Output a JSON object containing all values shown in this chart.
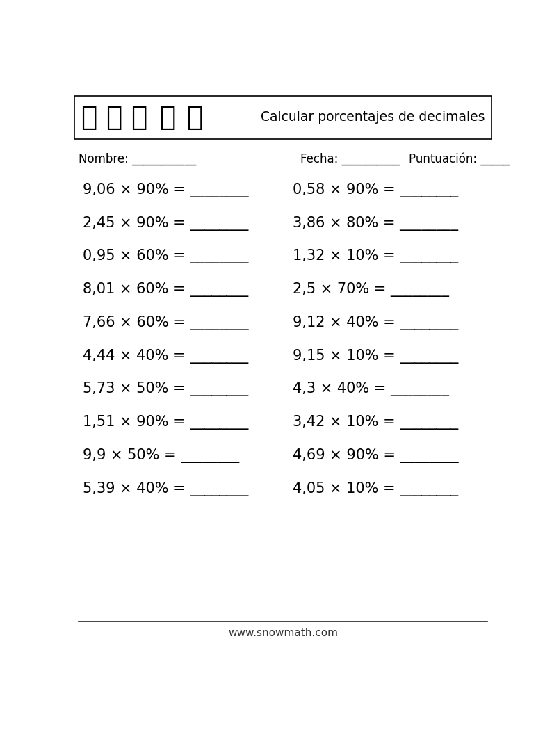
{
  "title": "Calcular porcentajes de decimales",
  "header_label_nombre": "Nombre: ",
  "header_line_nombre": "___________",
  "header_label_fecha": "Fecha: ",
  "header_line_fecha": "__________",
  "header_label_puntuacion": "Puntuación: ",
  "header_line_puntuacion": "_____",
  "footer_text": "www.snowmath.com",
  "problems_left": [
    "9,06 × 90% = ________",
    "2,45 × 90% = ________",
    "0,95 × 60% = ________",
    "8,01 × 60% = ________",
    "7,66 × 60% = ________",
    "4,44 × 40% = ________",
    "5,73 × 50% = ________",
    "1,51 × 90% = ________",
    "9,9 × 50% = ________",
    "5,39 × 40% = ________"
  ],
  "problems_right": [
    "0,58 × 90% = ________",
    "3,86 × 80% = ________",
    "1,32 × 10% = ________",
    "2,5 × 70% = ________",
    "9,12 × 40% = ________",
    "9,15 × 10% = ________",
    "4,3 × 40% = ________",
    "3,42 × 10% = ________",
    "4,69 × 90% = ________",
    "4,05 × 10% = ________"
  ],
  "bg_color": "#ffffff",
  "text_color": "#000000",
  "header_box_border_color": "#000000",
  "font_size_problems": 15,
  "font_size_header_title": 13.5,
  "font_size_header_labels": 12,
  "font_size_footer": 11
}
